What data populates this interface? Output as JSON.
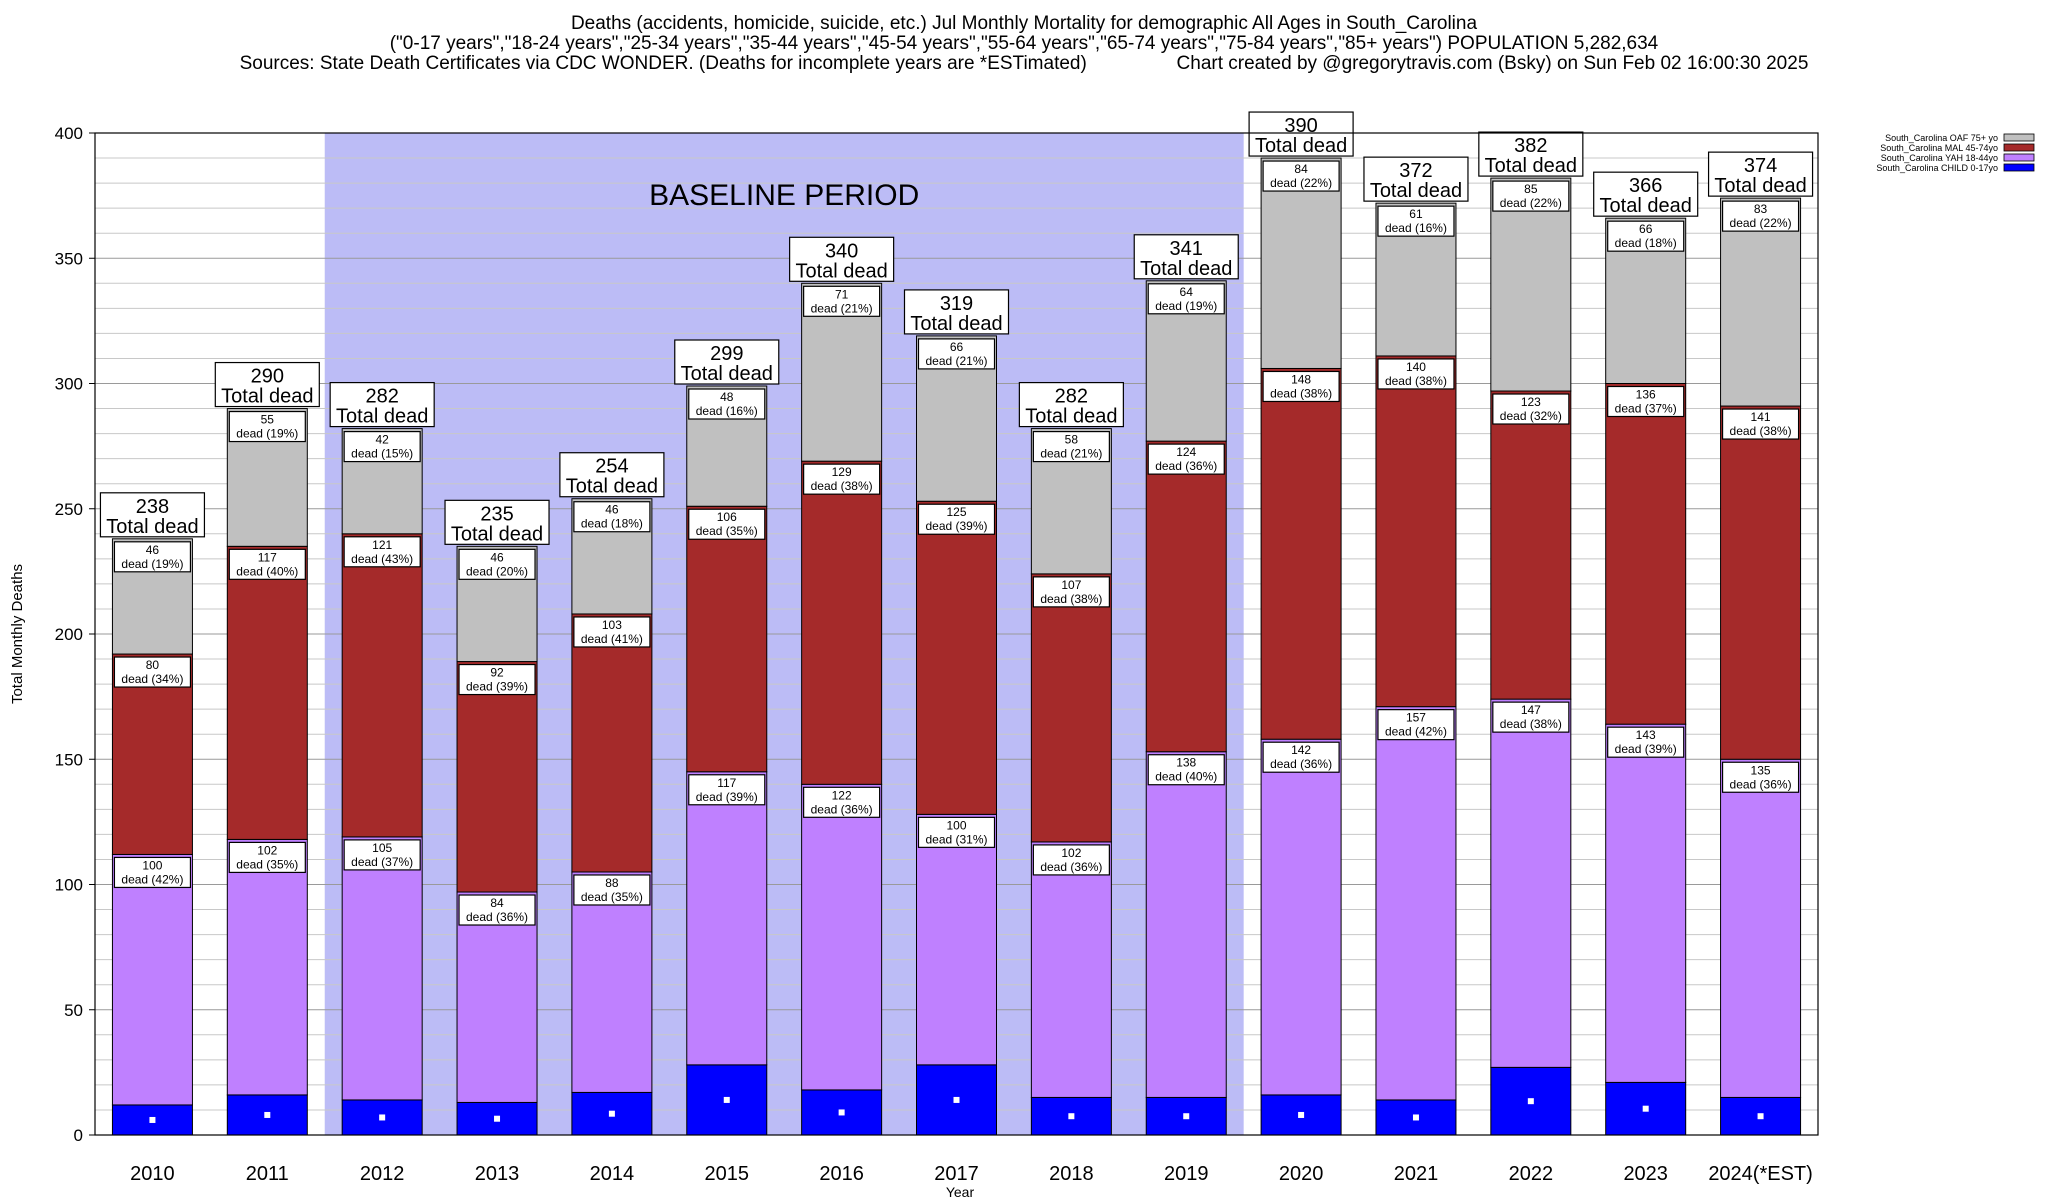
{
  "title_lines": [
    "Deaths (accidents, homicide, suicide, etc.) Jul Monthly Mortality for demographic All Ages in South_Carolina",
    "(\"0-17 years\",\"18-24 years\",\"25-34 years\",\"35-44 years\",\"45-54 years\",\"55-64 years\",\"65-74 years\",\"75-84 years\",\"85+ years\") POPULATION 5,282,634",
    "Sources: State Death Certificates via CDC WONDER. (Deaths for incomplete years are *ESTimated)                 Chart created by @gregorytravis.com (Bsky) on Sun Feb 02 16:00:30 2025"
  ],
  "chart_data": {
    "type": "bar",
    "stacked": true,
    "xlabel": "Year",
    "ylabel": "Total Monthly Deaths",
    "ylim": [
      0,
      400
    ],
    "yticks": [
      0,
      50,
      100,
      150,
      200,
      250,
      300,
      350,
      400
    ],
    "grid": true,
    "legend_position": "top-right",
    "baseline_label": "BASELINE PERIOD",
    "baseline_range": [
      "2012",
      "2019"
    ],
    "total_suffix": "Total dead",
    "categories": [
      "2010",
      "2011",
      "2012",
      "2013",
      "2014",
      "2015",
      "2016",
      "2017",
      "2018",
      "2019",
      "2020",
      "2021",
      "2022",
      "2023",
      "2024(*EST)"
    ],
    "totals": [
      238,
      290,
      282,
      235,
      254,
      299,
      340,
      319,
      282,
      341,
      390,
      372,
      382,
      366,
      374
    ],
    "series": [
      {
        "name": "South_Carolina CHILD 0-17yo",
        "color": "#0000ff",
        "values": [
          12,
          16,
          14,
          13,
          17,
          28,
          18,
          28,
          15,
          15,
          16,
          14,
          27,
          21,
          15
        ],
        "labels": [],
        "pcts": []
      },
      {
        "name": "South_Carolina YAH 18-44yo",
        "color": "#bf80ff",
        "values": [
          100,
          102,
          105,
          84,
          88,
          117,
          122,
          100,
          102,
          138,
          142,
          157,
          147,
          143,
          135
        ],
        "labels": [
          "100",
          "102",
          "105",
          "84",
          "88",
          "117",
          "122",
          "100",
          "102",
          "138",
          "142",
          "157",
          "147",
          "143",
          "135"
        ],
        "pcts": [
          "dead (42%)",
          "dead (35%)",
          "dead (37%)",
          "dead (36%)",
          "dead (35%)",
          "dead (39%)",
          "dead (36%)",
          "dead (31%)",
          "dead (36%)",
          "dead (40%)",
          "dead (36%)",
          "dead (42%)",
          "dead (38%)",
          "dead (39%)",
          "dead (36%)"
        ]
      },
      {
        "name": "South_Carolina MAL 45-74yo",
        "color": "#a52a2a",
        "values": [
          80,
          117,
          121,
          92,
          103,
          106,
          129,
          125,
          107,
          124,
          148,
          140,
          123,
          136,
          141
        ],
        "labels": [
          "80",
          "117",
          "121",
          "92",
          "103",
          "106",
          "129",
          "125",
          "107",
          "124",
          "148",
          "140",
          "123",
          "136",
          "141"
        ],
        "pcts": [
          "dead (34%)",
          "dead (40%)",
          "dead (43%)",
          "dead (39%)",
          "dead (41%)",
          "dead (35%)",
          "dead (38%)",
          "dead (39%)",
          "dead (38%)",
          "dead (36%)",
          "dead (38%)",
          "dead (38%)",
          "dead (32%)",
          "dead (37%)",
          "dead (38%)"
        ]
      },
      {
        "name": "South_Carolina OAF 75+ yo",
        "color": "#c0c0c0",
        "values": [
          46,
          55,
          42,
          46,
          46,
          48,
          71,
          66,
          58,
          64,
          84,
          61,
          85,
          66,
          83
        ],
        "labels": [
          "46",
          "55",
          "42",
          "46",
          "46",
          "48",
          "71",
          "66",
          "58",
          "64",
          "84",
          "61",
          "85",
          "66",
          "83"
        ],
        "pcts": [
          "dead (19%)",
          "dead (19%)",
          "dead (15%)",
          "dead (20%)",
          "dead (18%)",
          "dead (16%)",
          "dead (21%)",
          "dead (21%)",
          "dead (21%)",
          "dead (19%)",
          "dead (22%)",
          "dead (16%)",
          "dead (22%)",
          "dead (18%)",
          "dead (22%)"
        ]
      }
    ]
  }
}
